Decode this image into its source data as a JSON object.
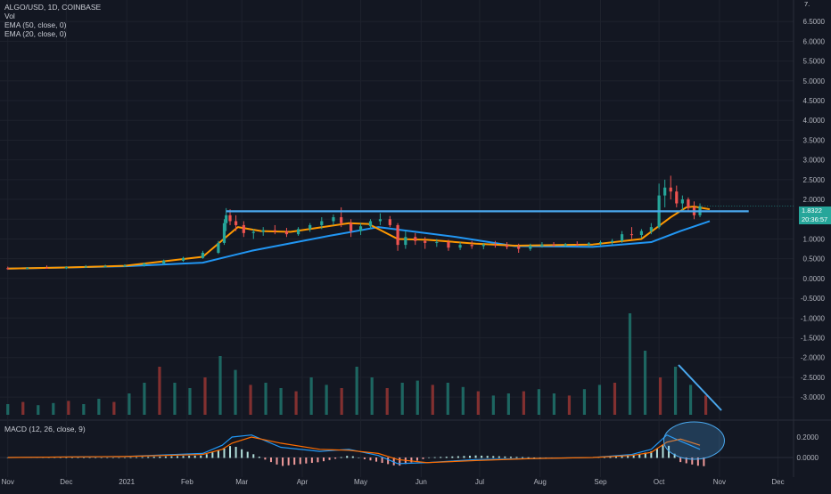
{
  "header": {
    "symbol_line": "ALGO/USD, 1D, COINBASE",
    "vol_label": "Vol",
    "ema1_label": "EMA (50, close, 0)",
    "ema2_label": "EMA (20, close, 0)",
    "macd_label": "MACD (12, 26, close, 9)"
  },
  "price_tag": {
    "price": "1.8322",
    "countdown": "20:36:57",
    "color": "#26a69a"
  },
  "max_label": "7.",
  "colors": {
    "background": "#131722",
    "grid": "#1e222d",
    "up": "#26a69a",
    "down": "#ef5350",
    "ema50": "#2196f3",
    "ema20": "#ff9800",
    "drawing": "#4aa8ee",
    "macd_line": "#2196f3",
    "signal_line": "#ff6d00"
  },
  "chart_data": [
    {
      "type": "candlestick",
      "title": "ALGO/USD, 1D, COINBASE",
      "x_ticks": [
        "Nov",
        "Dec",
        "2021",
        "Feb",
        "Mar",
        "Apr",
        "May",
        "Jun",
        "Jul",
        "Aug",
        "Sep",
        "Oct",
        "Nov",
        "Dec"
      ],
      "y_ticks": [
        "6.5000",
        "6.0000",
        "5.5000",
        "5.0000",
        "4.5000",
        "4.0000",
        "3.5000",
        "3.0000",
        "2.5000",
        "2.0000",
        "1.5000",
        "1.0000",
        "0.5000",
        "0.0000",
        "-0.5000",
        "-1.0000",
        "-1.5000",
        "-2.0000",
        "-2.5000",
        "-3.0000"
      ],
      "ylim": [
        -3.2,
        7.0
      ],
      "series": [
        {
          "name": "EMA (50, close, 0)",
          "x": [
            0,
            30,
            60,
            100,
            125,
            165,
            190,
            230,
            260,
            300,
            330,
            345,
            360
          ],
          "y": [
            0.25,
            0.28,
            0.31,
            0.4,
            0.7,
            1.08,
            1.3,
            1.05,
            0.82,
            0.8,
            0.92,
            1.2,
            1.45
          ]
        },
        {
          "name": "EMA (20, close, 0)",
          "x": [
            0,
            30,
            60,
            100,
            112,
            118,
            130,
            145,
            175,
            185,
            200,
            215,
            240,
            260,
            300,
            325,
            340,
            348,
            352,
            360
          ],
          "y": [
            0.25,
            0.28,
            0.32,
            0.55,
            1.05,
            1.3,
            1.2,
            1.18,
            1.4,
            1.38,
            1.0,
            0.98,
            0.88,
            0.83,
            0.86,
            1.0,
            1.55,
            1.8,
            1.82,
            1.75
          ]
        }
      ],
      "resistance_level": 1.7,
      "candles": [
        {
          "x": 0,
          "o": 0.26,
          "h": 0.3,
          "l": 0.22,
          "c": 0.25
        },
        {
          "x": 10,
          "o": 0.25,
          "h": 0.29,
          "l": 0.23,
          "c": 0.27
        },
        {
          "x": 20,
          "o": 0.27,
          "h": 0.33,
          "l": 0.25,
          "c": 0.26
        },
        {
          "x": 30,
          "o": 0.26,
          "h": 0.31,
          "l": 0.24,
          "c": 0.29
        },
        {
          "x": 40,
          "o": 0.29,
          "h": 0.34,
          "l": 0.27,
          "c": 0.3
        },
        {
          "x": 50,
          "o": 0.3,
          "h": 0.35,
          "l": 0.28,
          "c": 0.31
        },
        {
          "x": 60,
          "o": 0.31,
          "h": 0.36,
          "l": 0.29,
          "c": 0.33
        },
        {
          "x": 70,
          "o": 0.33,
          "h": 0.4,
          "l": 0.3,
          "c": 0.38
        },
        {
          "x": 80,
          "o": 0.38,
          "h": 0.48,
          "l": 0.35,
          "c": 0.45
        },
        {
          "x": 90,
          "o": 0.45,
          "h": 0.55,
          "l": 0.42,
          "c": 0.52
        },
        {
          "x": 100,
          "o": 0.52,
          "h": 0.7,
          "l": 0.5,
          "c": 0.65
        },
        {
          "x": 108,
          "o": 0.65,
          "h": 0.95,
          "l": 0.62,
          "c": 0.9
        },
        {
          "x": 111,
          "o": 0.9,
          "h": 1.5,
          "l": 0.85,
          "c": 1.4
        },
        {
          "x": 112,
          "o": 1.4,
          "h": 1.78,
          "l": 1.2,
          "c": 1.6
        },
        {
          "x": 114,
          "o": 1.6,
          "h": 1.75,
          "l": 1.35,
          "c": 1.45
        },
        {
          "x": 117,
          "o": 1.45,
          "h": 1.6,
          "l": 1.2,
          "c": 1.35
        },
        {
          "x": 121,
          "o": 1.35,
          "h": 1.45,
          "l": 1.05,
          "c": 1.15
        },
        {
          "x": 126,
          "o": 1.15,
          "h": 1.25,
          "l": 1.0,
          "c": 1.18
        },
        {
          "x": 131,
          "o": 1.18,
          "h": 1.3,
          "l": 1.08,
          "c": 1.22
        },
        {
          "x": 137,
          "o": 1.22,
          "h": 1.35,
          "l": 1.12,
          "c": 1.2
        },
        {
          "x": 143,
          "o": 1.2,
          "h": 1.28,
          "l": 1.05,
          "c": 1.12
        },
        {
          "x": 149,
          "o": 1.12,
          "h": 1.3,
          "l": 1.08,
          "c": 1.25
        },
        {
          "x": 155,
          "o": 1.25,
          "h": 1.4,
          "l": 1.18,
          "c": 1.35
        },
        {
          "x": 161,
          "o": 1.35,
          "h": 1.55,
          "l": 1.25,
          "c": 1.45
        },
        {
          "x": 167,
          "o": 1.45,
          "h": 1.62,
          "l": 1.35,
          "c": 1.55
        },
        {
          "x": 171,
          "o": 1.55,
          "h": 1.8,
          "l": 1.3,
          "c": 1.4
        },
        {
          "x": 176,
          "o": 1.4,
          "h": 1.5,
          "l": 1.05,
          "c": 1.2
        },
        {
          "x": 181,
          "o": 1.2,
          "h": 1.4,
          "l": 1.1,
          "c": 1.32
        },
        {
          "x": 186,
          "o": 1.32,
          "h": 1.5,
          "l": 1.25,
          "c": 1.45
        },
        {
          "x": 191,
          "o": 1.45,
          "h": 1.65,
          "l": 1.35,
          "c": 1.5
        },
        {
          "x": 196,
          "o": 1.5,
          "h": 1.58,
          "l": 1.3,
          "c": 1.35
        },
        {
          "x": 200,
          "o": 1.35,
          "h": 1.4,
          "l": 0.7,
          "c": 0.85
        },
        {
          "x": 204,
          "o": 0.85,
          "h": 1.2,
          "l": 0.75,
          "c": 1.05
        },
        {
          "x": 209,
          "o": 1.05,
          "h": 1.15,
          "l": 0.85,
          "c": 0.95
        },
        {
          "x": 214,
          "o": 0.95,
          "h": 1.05,
          "l": 0.75,
          "c": 0.9
        },
        {
          "x": 220,
          "o": 0.9,
          "h": 1.0,
          "l": 0.8,
          "c": 0.92
        },
        {
          "x": 226,
          "o": 0.92,
          "h": 0.98,
          "l": 0.7,
          "c": 0.78
        },
        {
          "x": 232,
          "o": 0.78,
          "h": 0.92,
          "l": 0.72,
          "c": 0.85
        },
        {
          "x": 238,
          "o": 0.85,
          "h": 0.95,
          "l": 0.75,
          "c": 0.82
        },
        {
          "x": 244,
          "o": 0.82,
          "h": 0.9,
          "l": 0.74,
          "c": 0.86
        },
        {
          "x": 250,
          "o": 0.86,
          "h": 0.95,
          "l": 0.78,
          "c": 0.84
        },
        {
          "x": 256,
          "o": 0.84,
          "h": 0.92,
          "l": 0.74,
          "c": 0.8
        },
        {
          "x": 262,
          "o": 0.8,
          "h": 0.88,
          "l": 0.65,
          "c": 0.75
        },
        {
          "x": 268,
          "o": 0.75,
          "h": 0.88,
          "l": 0.7,
          "c": 0.83
        },
        {
          "x": 274,
          "o": 0.83,
          "h": 0.92,
          "l": 0.78,
          "c": 0.86
        },
        {
          "x": 280,
          "o": 0.86,
          "h": 0.92,
          "l": 0.8,
          "c": 0.84
        },
        {
          "x": 286,
          "o": 0.84,
          "h": 0.9,
          "l": 0.79,
          "c": 0.87
        },
        {
          "x": 292,
          "o": 0.87,
          "h": 0.94,
          "l": 0.82,
          "c": 0.86
        },
        {
          "x": 298,
          "o": 0.86,
          "h": 0.92,
          "l": 0.8,
          "c": 0.89
        },
        {
          "x": 304,
          "o": 0.89,
          "h": 0.96,
          "l": 0.84,
          "c": 0.92
        },
        {
          "x": 310,
          "o": 0.92,
          "h": 1.0,
          "l": 0.86,
          "c": 0.95
        },
        {
          "x": 315,
          "o": 0.95,
          "h": 1.2,
          "l": 0.9,
          "c": 1.12
        },
        {
          "x": 320,
          "o": 1.12,
          "h": 1.3,
          "l": 1.0,
          "c": 1.1
        },
        {
          "x": 325,
          "o": 1.1,
          "h": 1.25,
          "l": 1.02,
          "c": 1.2
        },
        {
          "x": 330,
          "o": 1.2,
          "h": 1.4,
          "l": 1.12,
          "c": 1.3
        },
        {
          "x": 334,
          "o": 1.3,
          "h": 2.4,
          "l": 1.25,
          "c": 2.1
        },
        {
          "x": 337,
          "o": 2.1,
          "h": 2.5,
          "l": 1.8,
          "c": 2.3
        },
        {
          "x": 340,
          "o": 2.3,
          "h": 2.6,
          "l": 2.0,
          "c": 2.2
        },
        {
          "x": 343,
          "o": 2.2,
          "h": 2.35,
          "l": 1.8,
          "c": 1.9
        },
        {
          "x": 346,
          "o": 1.9,
          "h": 2.1,
          "l": 1.7,
          "c": 2.0
        },
        {
          "x": 349,
          "o": 2.0,
          "h": 2.05,
          "l": 1.7,
          "c": 1.8
        },
        {
          "x": 352,
          "o": 1.8,
          "h": 1.95,
          "l": 1.5,
          "c": 1.6
        },
        {
          "x": 355,
          "o": 1.6,
          "h": 1.9,
          "l": 1.55,
          "c": 1.83
        }
      ]
    },
    {
      "type": "bar",
      "title": "Vol",
      "values_relative": [
        0.1,
        0.12,
        0.09,
        0.11,
        0.13,
        0.1,
        0.15,
        0.12,
        0.2,
        0.3,
        0.45,
        0.3,
        0.25,
        0.35,
        0.55,
        0.42,
        0.28,
        0.3,
        0.25,
        0.22,
        0.35,
        0.28,
        0.25,
        0.45,
        0.35,
        0.25,
        0.3,
        0.32,
        0.28,
        0.3,
        0.26,
        0.22,
        0.18,
        0.2,
        0.22,
        0.24,
        0.2,
        0.18,
        0.24,
        0.28,
        0.3,
        0.95,
        0.6,
        0.35,
        0.45,
        0.28,
        0.18
      ]
    },
    {
      "type": "line",
      "title": "MACD (12, 26, close, 9)",
      "y_ticks": [
        "0.2000",
        "0.0000"
      ],
      "series": [
        {
          "name": "MACD",
          "x": [
            0,
            60,
            100,
            110,
            115,
            125,
            140,
            160,
            175,
            190,
            200,
            215,
            240,
            270,
            300,
            320,
            330,
            338,
            345,
            355
          ],
          "y": [
            0.0,
            0.01,
            0.04,
            0.12,
            0.2,
            0.22,
            0.1,
            0.06,
            0.08,
            0.02,
            -0.06,
            -0.05,
            -0.02,
            -0.01,
            0.0,
            0.03,
            0.08,
            0.22,
            0.16,
            0.08
          ]
        },
        {
          "name": "Signal",
          "x": [
            0,
            60,
            100,
            110,
            115,
            125,
            140,
            160,
            175,
            190,
            200,
            215,
            240,
            270,
            300,
            320,
            330,
            338,
            345,
            355
          ],
          "y": [
            0.0,
            0.01,
            0.03,
            0.08,
            0.14,
            0.2,
            0.14,
            0.08,
            0.07,
            0.04,
            -0.02,
            -0.05,
            -0.03,
            -0.01,
            0.0,
            0.02,
            0.05,
            0.15,
            0.18,
            0.12
          ]
        }
      ]
    }
  ]
}
